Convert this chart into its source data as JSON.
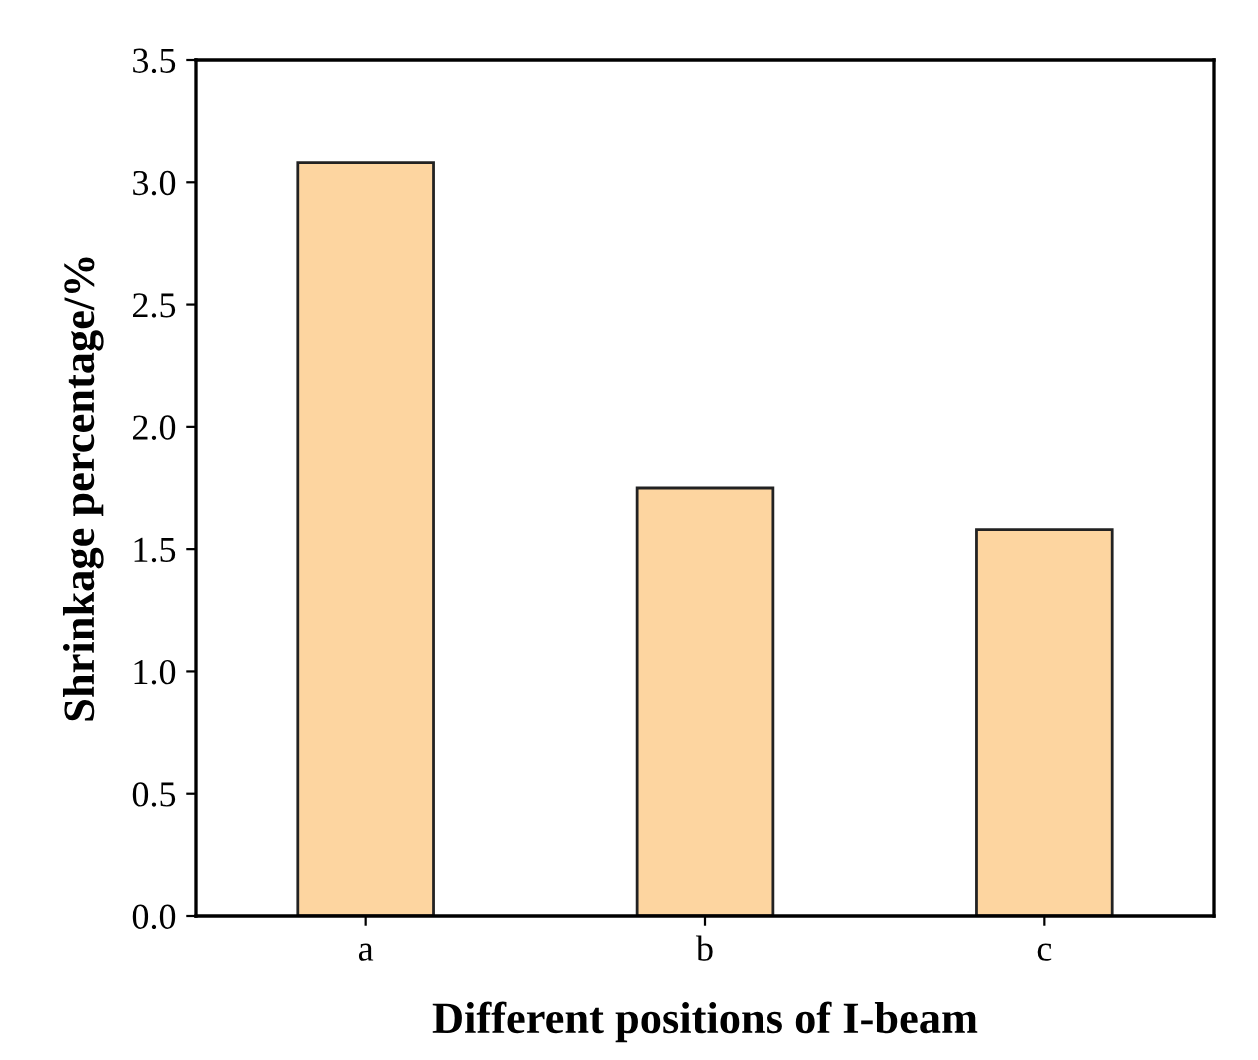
{
  "chart_data": {
    "type": "bar",
    "xlabel": "Different positions of I-beam",
    "ylabel": "Shrinkage percentage/%",
    "categories": [
      "a",
      "b",
      "c"
    ],
    "values": [
      3.08,
      1.75,
      1.58
    ],
    "color": "#fdd5a0",
    "ylim": [
      0,
      3.5
    ],
    "yticks": [
      {
        "value": 0,
        "label": "0.0"
      },
      0.5,
      {
        "value": 1,
        "label": "1.0"
      },
      1.5,
      {
        "value": 2,
        "label": "2.0"
      },
      2.5,
      {
        "value": 3,
        "label": "3.0"
      },
      3.5
    ],
    "grid": false
  }
}
